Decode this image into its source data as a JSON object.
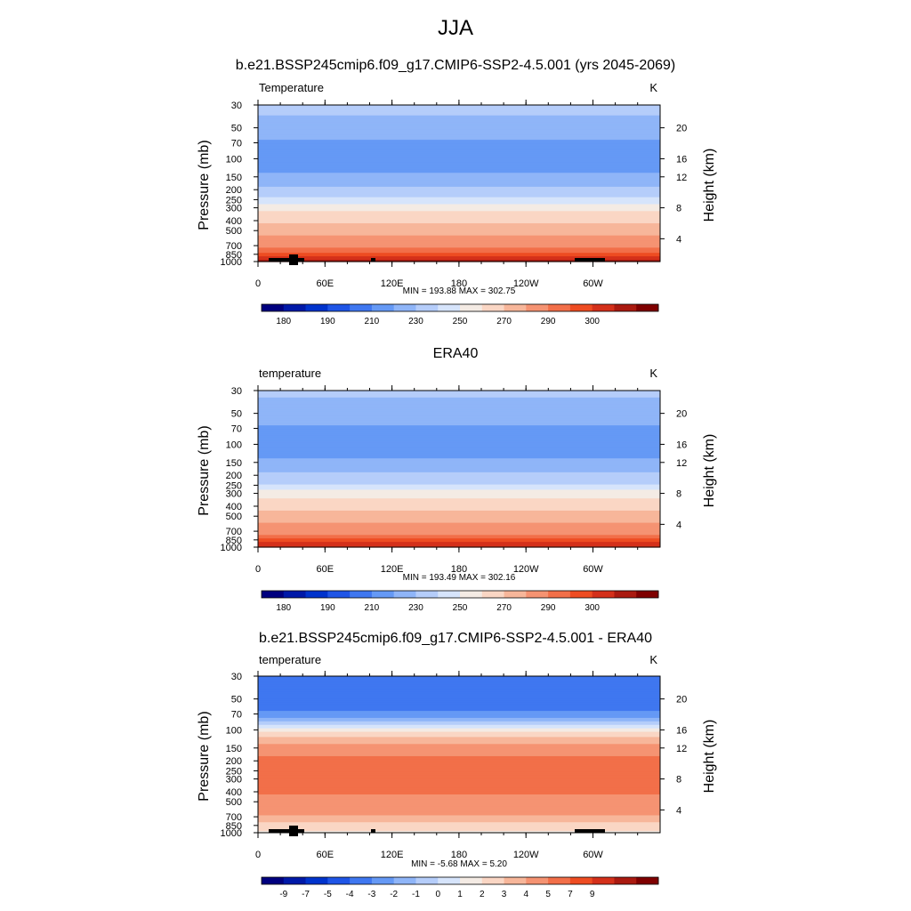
{
  "title": "JJA",
  "pressure_axis_label": "Pressure (mb)",
  "height_axis_label": "Height (km)",
  "colors": {
    "abs_scale": [
      "#00007F",
      "#0019A8",
      "#0033CC",
      "#1F55E6",
      "#3F77F0",
      "#6599F5",
      "#8FB5F8",
      "#B5CDFA",
      "#D6E4FB",
      "#F4EBE4",
      "#FAD6C4",
      "#F7B69A",
      "#F59372",
      "#F26F49",
      "#EE4C22",
      "#D4301A",
      "#AA1A10",
      "#7F0000"
    ],
    "diff_scale": [
      "#00007F",
      "#0019A8",
      "#0033CC",
      "#1F55E6",
      "#3F77F0",
      "#6599F5",
      "#8FB5F8",
      "#B5CDFA",
      "#D6E4FB",
      "#F4EBE4",
      "#FAD6C4",
      "#F7B69A",
      "#F59372",
      "#F26F49",
      "#EE4C22",
      "#D4301A",
      "#AA1A10",
      "#7F0000"
    ],
    "topography": "#000000"
  },
  "chart_data": [
    {
      "type": "heatmap",
      "title": "b.e21.BSSP245cmip6.f09_g17.CMIP6-SSP2-4.5.001 (yrs 2045-2069)",
      "left_label": "Temperature",
      "units": "K",
      "x_ticks": [
        "0",
        "60E",
        "120E",
        "180",
        "120W",
        "60W"
      ],
      "y_ticks_pressure": [
        "30",
        "50",
        "70",
        "100",
        "150",
        "200",
        "250",
        "300",
        "400",
        "500",
        "700",
        "850",
        "1000"
      ],
      "y_ticks_height": [
        "20",
        "16",
        "12",
        "8",
        "4"
      ],
      "stats": "MIN = 193.88  MAX = 302.75",
      "colorbar_labels": [
        "180",
        "190",
        "210",
        "230",
        "250",
        "270",
        "290",
        "300"
      ],
      "profile": [
        {
          "p": 30,
          "v": 223
        },
        {
          "p": 45,
          "v": 218
        },
        {
          "p": 60,
          "v": 213
        },
        {
          "p": 70,
          "v": 208
        },
        {
          "p": 100,
          "v": 203
        },
        {
          "p": 130,
          "v": 207
        },
        {
          "p": 150,
          "v": 213
        },
        {
          "p": 175,
          "v": 218
        },
        {
          "p": 200,
          "v": 222
        },
        {
          "p": 225,
          "v": 227
        },
        {
          "p": 250,
          "v": 234
        },
        {
          "p": 280,
          "v": 242
        },
        {
          "p": 300,
          "v": 248
        },
        {
          "p": 350,
          "v": 253
        },
        {
          "p": 400,
          "v": 257
        },
        {
          "p": 450,
          "v": 262
        },
        {
          "p": 500,
          "v": 267
        },
        {
          "p": 600,
          "v": 272
        },
        {
          "p": 700,
          "v": 278
        },
        {
          "p": 800,
          "v": 284
        },
        {
          "p": 850,
          "v": 288
        },
        {
          "p": 920,
          "v": 292
        },
        {
          "p": 1000,
          "v": 296
        }
      ]
    },
    {
      "type": "heatmap",
      "title": "ERA40",
      "left_label": "temperature",
      "units": "K",
      "x_ticks": [
        "0",
        "60E",
        "120E",
        "180",
        "120W",
        "60W"
      ],
      "y_ticks_pressure": [
        "30",
        "50",
        "70",
        "100",
        "150",
        "200",
        "250",
        "300",
        "400",
        "500",
        "700",
        "850",
        "1000"
      ],
      "y_ticks_height": [
        "20",
        "16",
        "12",
        "8",
        "4"
      ],
      "stats": "MIN = 193.49  MAX = 302.16",
      "colorbar_labels": [
        "180",
        "190",
        "210",
        "230",
        "250",
        "270",
        "290",
        "300"
      ],
      "profile": [
        {
          "p": 30,
          "v": 222
        },
        {
          "p": 45,
          "v": 217
        },
        {
          "p": 60,
          "v": 213
        },
        {
          "p": 70,
          "v": 208
        },
        {
          "p": 100,
          "v": 203
        },
        {
          "p": 130,
          "v": 207
        },
        {
          "p": 150,
          "v": 213
        },
        {
          "p": 175,
          "v": 218
        },
        {
          "p": 200,
          "v": 222
        },
        {
          "p": 225,
          "v": 226
        },
        {
          "p": 250,
          "v": 232
        },
        {
          "p": 280,
          "v": 240
        },
        {
          "p": 300,
          "v": 246
        },
        {
          "p": 350,
          "v": 251
        },
        {
          "p": 400,
          "v": 256
        },
        {
          "p": 450,
          "v": 261
        },
        {
          "p": 500,
          "v": 266
        },
        {
          "p": 600,
          "v": 271
        },
        {
          "p": 700,
          "v": 277
        },
        {
          "p": 800,
          "v": 283
        },
        {
          "p": 850,
          "v": 287
        },
        {
          "p": 920,
          "v": 291
        },
        {
          "p": 1000,
          "v": 295
        }
      ]
    },
    {
      "type": "heatmap",
      "title": "b.e21.BSSP245cmip6.f09_g17.CMIP6-SSP2-4.5.001 - ERA40",
      "left_label": "temperature",
      "units": "K",
      "x_ticks": [
        "0",
        "60E",
        "120E",
        "180",
        "120W",
        "60W"
      ],
      "y_ticks_pressure": [
        "30",
        "50",
        "70",
        "100",
        "150",
        "200",
        "250",
        "300",
        "400",
        "500",
        "700",
        "850",
        "1000"
      ],
      "y_ticks_height": [
        "20",
        "16",
        "12",
        "8",
        "4"
      ],
      "stats": "MIN =  -5.68  MAX =   5.20",
      "colorbar_labels": [
        "-9",
        "-7",
        "-5",
        "-4",
        "-3",
        "-2",
        "-1",
        "0",
        "1",
        "2",
        "3",
        "4",
        "5",
        "7",
        "9"
      ],
      "profile": [
        {
          "p": 30,
          "v": -4.4
        },
        {
          "p": 60,
          "v": -4.3
        },
        {
          "p": 75,
          "v": -3.5
        },
        {
          "p": 85,
          "v": -1.5
        },
        {
          "p": 100,
          "v": 0.5
        },
        {
          "p": 120,
          "v": 2.2
        },
        {
          "p": 150,
          "v": 3.5
        },
        {
          "p": 200,
          "v": 4.3
        },
        {
          "p": 300,
          "v": 4.6
        },
        {
          "p": 400,
          "v": 4.2
        },
        {
          "p": 500,
          "v": 3.6
        },
        {
          "p": 650,
          "v": 3.2
        },
        {
          "p": 750,
          "v": 2.4
        },
        {
          "p": 850,
          "v": 1.6
        },
        {
          "p": 950,
          "v": 1.0
        },
        {
          "p": 1000,
          "v": 0.8
        }
      ]
    }
  ]
}
